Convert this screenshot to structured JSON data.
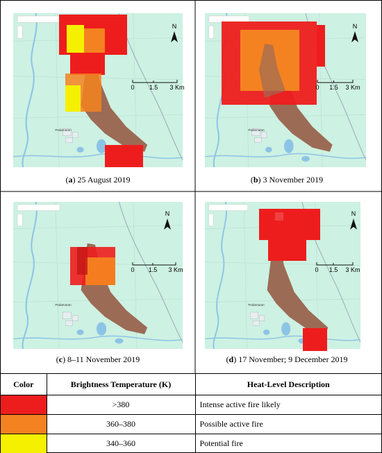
{
  "panels": [
    {
      "caption": {
        "open": "(",
        "letter": "a",
        "rest": ") 25 August 2019"
      },
      "north": "N",
      "scale": [
        "0",
        "1.5",
        "3 Km"
      ],
      "place": "Pedamaran"
    },
    {
      "caption": {
        "open": "(",
        "letter": "b",
        "rest": ") 3 November 2019"
      },
      "north": "N",
      "scale": [
        "0",
        "1.5",
        "3 Km"
      ],
      "place": "Pedamaran"
    },
    {
      "caption": {
        "open": "(",
        "letter": "c",
        "rest": ") 8–11 November 2019"
      },
      "north": "N",
      "scale": [
        "0",
        "1.5",
        "3 Km"
      ],
      "place": "Pedamaran"
    },
    {
      "caption": {
        "open": "(",
        "letter": "d",
        "rest": ") 17 November; 9 December 2019"
      },
      "north": "N",
      "scale": [
        "0",
        "1.5",
        "3 Km"
      ],
      "place": "Pedamaran"
    }
  ],
  "table": {
    "header": [
      "Color",
      "Brightness Temperature (K)",
      "Heat-Level Description"
    ],
    "rows": [
      {
        "color": "#ee1d1d",
        "temperature": ">380",
        "description": "Intense active fire likely"
      },
      {
        "color": "#f58220",
        "temperature": "360–380",
        "description": "Possible active fire"
      },
      {
        "color": "#f5f000",
        "temperature": "340–360",
        "description": "Potential fire"
      }
    ]
  }
}
